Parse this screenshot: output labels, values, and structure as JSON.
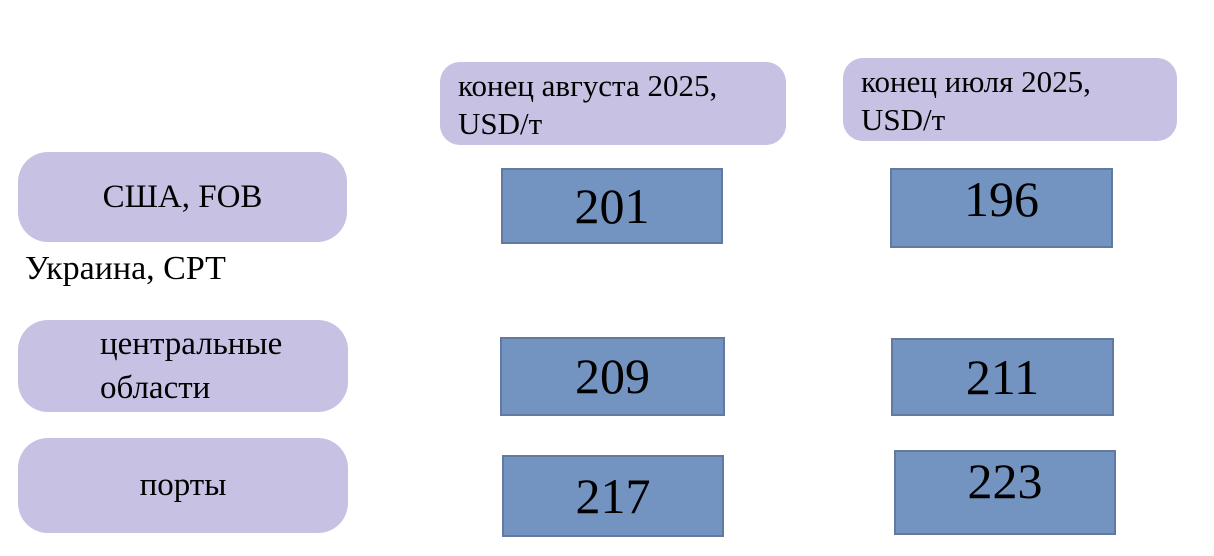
{
  "chart_data": {
    "type": "table",
    "columns": [
      "конец августа 2025, USD/т",
      "конец июля 2025, USD/т"
    ],
    "rows": [
      {
        "label": "США, FOB",
        "group": "",
        "values": [
          201,
          196
        ]
      },
      {
        "label": "центральные области",
        "group": "Украина, СРТ",
        "values": [
          209,
          211
        ]
      },
      {
        "label": "порты",
        "group": "Украина, СРТ",
        "values": [
          217,
          223
        ]
      }
    ],
    "unit": "USD/т",
    "legend_position": "none",
    "grid": false
  },
  "colors": {
    "label_box_bg": "#c7c1e3",
    "value_box_bg": "#7393c1",
    "value_box_border": "#64799f",
    "text": "#000000",
    "background": "#ffffff"
  }
}
